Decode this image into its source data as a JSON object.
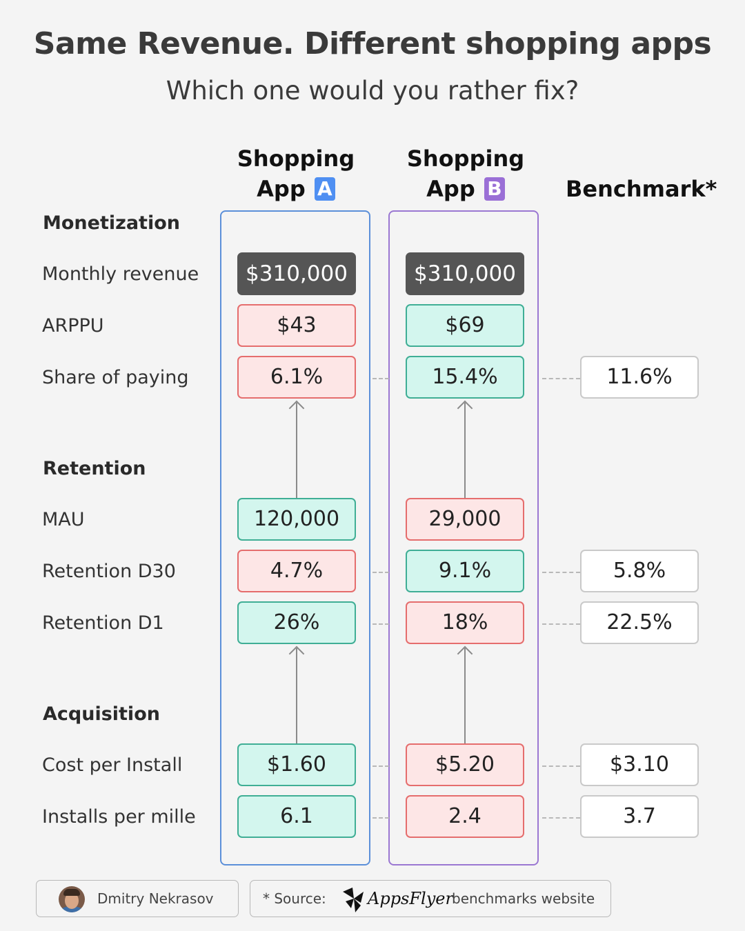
{
  "header": {
    "title": "Same Revenue. Different shopping apps",
    "subtitle": "Which one would you rather fix?"
  },
  "columns": {
    "app_a": {
      "line1": "Shopping",
      "line2": "App",
      "letter": "A"
    },
    "app_b": {
      "line1": "Shopping",
      "line2": "App",
      "letter": "B"
    },
    "benchmark": "Benchmark*"
  },
  "sections": {
    "monetization": "Monetization",
    "retention": "Retention",
    "acquisition": "Acquisition"
  },
  "rows": {
    "monthly_revenue": {
      "label": "Monthly revenue",
      "a": "$310,000",
      "b": "$310,000"
    },
    "arppu": {
      "label": "ARPPU",
      "a": "$43",
      "b": "$69"
    },
    "share_paying": {
      "label": "Share of paying",
      "a": "6.1%",
      "b": "15.4%",
      "bench": "11.6%"
    },
    "mau": {
      "label": "MAU",
      "a": "120,000",
      "b": "29,000"
    },
    "retention_d30": {
      "label": "Retention D30",
      "a": "4.7%",
      "b": "9.1%",
      "bench": "5.8%"
    },
    "retention_d1": {
      "label": "Retention D1",
      "a": "26%",
      "b": "18%",
      "bench": "22.5%"
    },
    "cpi": {
      "label": "Cost per Install",
      "a": "$1.60",
      "b": "$5.20",
      "bench": "$3.10"
    },
    "ipm": {
      "label": "Installs per mille",
      "a": "6.1",
      "b": "2.4",
      "bench": "3.7"
    }
  },
  "footer": {
    "author": "Dmitry Nekrasov",
    "source_prefix": "* Source:",
    "source_brand": "AppsFlyer",
    "source_suffix": "benchmarks website"
  },
  "colors": {
    "app_a": "#4f8ff2",
    "app_b": "#9a6fd6",
    "bad": "#fde6e6",
    "good": "#d3f6ee",
    "revenue": "#555555"
  }
}
